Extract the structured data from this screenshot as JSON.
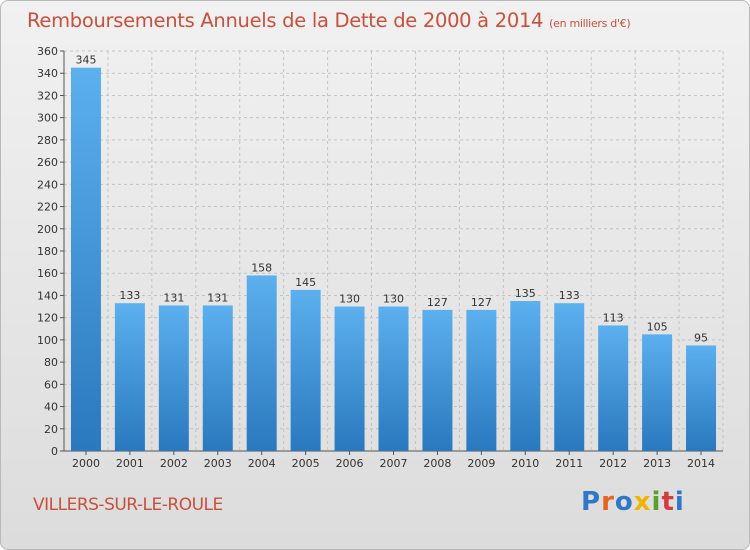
{
  "title": "Remboursements Annuels de la Dette de 2000 à 2014",
  "unit_note": "(en milliers d'€)",
  "city": "VILLERS-SUR-LE-ROULE",
  "logo": {
    "letters": [
      "P",
      "r",
      "o",
      "x",
      "i",
      "t",
      "i"
    ],
    "colors": [
      "#2f77c7",
      "#e6641e",
      "#2f77c7",
      "#f0b400",
      "#5aa02c",
      "#d23c3c",
      "#2f77c7"
    ]
  },
  "colors": {
    "bar": "#3c91d7",
    "title": "#c8503c"
  },
  "chart_data": {
    "type": "bar",
    "title": "Remboursements Annuels de la Dette de 2000 à 2014",
    "categories": [
      "2000",
      "2001",
      "2002",
      "2003",
      "2004",
      "2005",
      "2006",
      "2007",
      "2008",
      "2009",
      "2010",
      "2011",
      "2012",
      "2013",
      "2014"
    ],
    "values": [
      345,
      133,
      131,
      131,
      158,
      145,
      130,
      130,
      127,
      127,
      135,
      133,
      113,
      105,
      95
    ],
    "ylim": [
      0,
      360
    ],
    "yticks": [
      0,
      20,
      40,
      60,
      80,
      100,
      120,
      140,
      160,
      180,
      200,
      220,
      240,
      260,
      280,
      300,
      320,
      340,
      360
    ],
    "grid": true,
    "xlabel": "",
    "ylabel": ""
  }
}
